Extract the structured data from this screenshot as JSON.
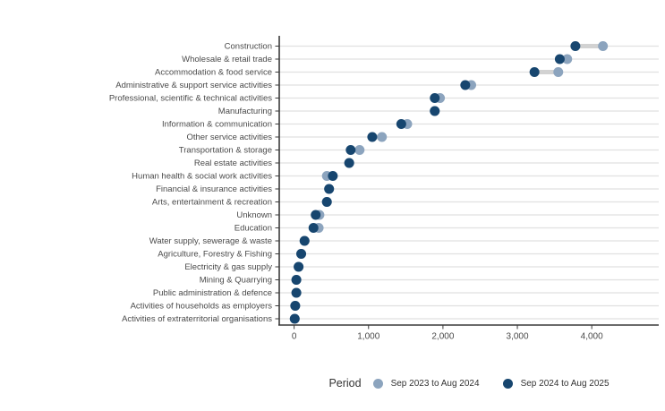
{
  "colors": {
    "series_2024": "#8CA4BE",
    "series_2025": "#17466F",
    "connector": "#D2D2D2",
    "gridline": "#E0E0E0",
    "axis": "#3A3A3A",
    "text": "#4A4A4A"
  },
  "legend": {
    "title": "Period",
    "items": [
      {
        "label": "Sep 2023 to Aug 2024",
        "color": "#8CA4BE"
      },
      {
        "label": "Sep 2024 to Aug 2025",
        "color": "#17466F"
      }
    ]
  },
  "chart_data": {
    "type": "scatter",
    "variant": "dumbbell-dot-plot",
    "orientation": "horizontal",
    "title": "",
    "xlabel": "",
    "ylabel": "",
    "grid": "horizontal",
    "legend_position": "bottom",
    "legend_title": "Period",
    "categories": [
      "Construction",
      "Wholesale & retail trade",
      "Accommodation & food service",
      "Administrative & support service activities",
      "Professional, scientific & technical activities",
      "Manufacturing",
      "Information & communication",
      "Other service activities",
      "Transportation & storage",
      "Real estate activities",
      "Human health & social work activities",
      "Financial & insurance activities",
      "Arts, entertainment & recreation",
      "Unknown",
      "Education",
      "Water supply, sewerage & waste",
      "Agriculture, Forestry & Fishing",
      "Electricity & gas supply",
      "Mining & Quarrying",
      "Public administration & defence",
      "Activities of households as employers",
      "Activities of extraterritorial organisations"
    ],
    "series": [
      {
        "name": "Sep 2023 to Aug 2024",
        "color": "#8CA4BE",
        "values": [
          4150,
          3670,
          3550,
          2380,
          1960,
          1890,
          1520,
          1180,
          880,
          740,
          440,
          470,
          440,
          340,
          330,
          140,
          95,
          60,
          30,
          30,
          15,
          8
        ]
      },
      {
        "name": "Sep 2024 to Aug 2025",
        "color": "#17466F",
        "values": [
          3780,
          3570,
          3230,
          2300,
          1890,
          1890,
          1440,
          1050,
          760,
          740,
          520,
          470,
          440,
          290,
          260,
          140,
          95,
          60,
          30,
          30,
          15,
          8
        ]
      }
    ],
    "x_axis": {
      "min": -200,
      "max": 4900,
      "ticks": [
        0,
        1000,
        2000,
        3000,
        4000
      ],
      "tick_labels": [
        "0",
        "1,000",
        "2,000",
        "3,000",
        "4,000"
      ]
    }
  }
}
